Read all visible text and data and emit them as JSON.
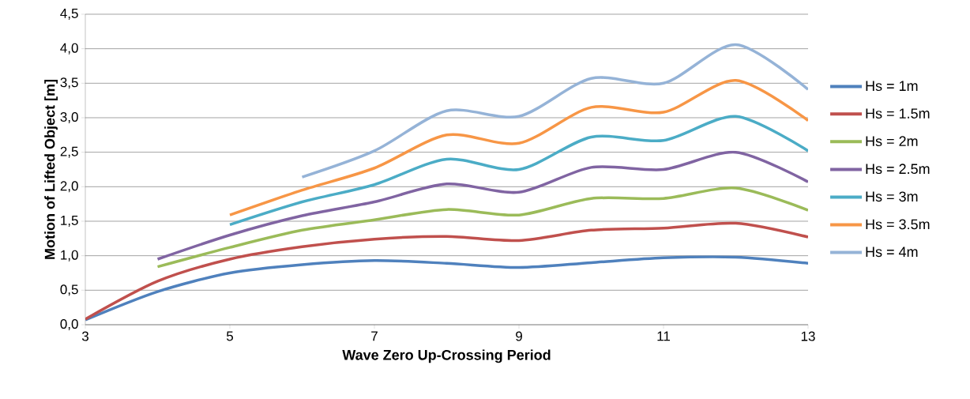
{
  "chart_data": {
    "type": "line",
    "xlabel": "Wave Zero Up-Crossing Period",
    "ylabel": "Motion of Lifted Object [m]",
    "xlim": [
      3,
      13
    ],
    "xticks": [
      3,
      5,
      7,
      9,
      11,
      13
    ],
    "ylim": [
      0,
      4.5
    ],
    "yticks": [
      {
        "value": 0,
        "label": "0,0"
      },
      {
        "value": 0.5,
        "label": "0,5"
      },
      {
        "value": 1,
        "label": "1,0"
      },
      {
        "value": 1.5,
        "label": "1,5"
      },
      {
        "value": 2,
        "label": "2,0"
      },
      {
        "value": 2.5,
        "label": "2,5"
      },
      {
        "value": 3,
        "label": "3,0"
      },
      {
        "value": 3.5,
        "label": "3,5"
      },
      {
        "value": 4,
        "label": "4,0"
      },
      {
        "value": 4.5,
        "label": "4,5"
      }
    ],
    "grid": "y",
    "legend": "right",
    "marker": "none",
    "line_style": "solid",
    "series": [
      {
        "name": "Hs = 1m",
        "color": "#4f81bd",
        "x": [
          3,
          4,
          5,
          6,
          7,
          8,
          9,
          10,
          11,
          12,
          13
        ],
        "values": [
          0.07,
          0.48,
          0.75,
          0.87,
          0.93,
          0.89,
          0.83,
          0.9,
          0.97,
          0.98,
          0.89
        ]
      },
      {
        "name": "Hs = 1.5m",
        "color": "#c0504d",
        "x": [
          3,
          4,
          5,
          6,
          7,
          8,
          9,
          10,
          11,
          12,
          13
        ],
        "values": [
          0.08,
          0.63,
          0.95,
          1.13,
          1.24,
          1.28,
          1.22,
          1.37,
          1.4,
          1.47,
          1.27
        ]
      },
      {
        "name": "Hs = 2m",
        "color": "#9bbb59",
        "x": [
          4,
          5,
          6,
          7,
          8,
          9,
          10,
          11,
          12,
          13
        ],
        "values": [
          0.84,
          1.12,
          1.37,
          1.52,
          1.67,
          1.59,
          1.83,
          1.83,
          1.98,
          1.66
        ]
      },
      {
        "name": "Hs = 2.5m",
        "color": "#8064a2",
        "x": [
          4,
          5,
          6,
          7,
          8,
          9,
          10,
          11,
          12,
          13
        ],
        "values": [
          0.95,
          1.3,
          1.58,
          1.78,
          2.04,
          1.92,
          2.28,
          2.25,
          2.5,
          2.07
        ]
      },
      {
        "name": "Hs = 3m",
        "color": "#4bacc6",
        "x": [
          5,
          6,
          7,
          8,
          9,
          10,
          11,
          12,
          13
        ],
        "values": [
          1.45,
          1.78,
          2.03,
          2.4,
          2.25,
          2.72,
          2.67,
          3.02,
          2.52
        ]
      },
      {
        "name": "Hs = 3.5m",
        "color": "#f79646",
        "x": [
          5,
          6,
          7,
          8,
          9,
          10,
          11,
          12,
          13
        ],
        "values": [
          1.59,
          1.95,
          2.27,
          2.75,
          2.63,
          3.15,
          3.08,
          3.54,
          2.96
        ]
      },
      {
        "name": "Hs = 4m",
        "color": "#95b3d7",
        "x": [
          6,
          7,
          8,
          9,
          10,
          11,
          12,
          13
        ],
        "values": [
          2.14,
          2.52,
          3.1,
          3.02,
          3.57,
          3.5,
          4.06,
          3.41
        ]
      }
    ]
  }
}
